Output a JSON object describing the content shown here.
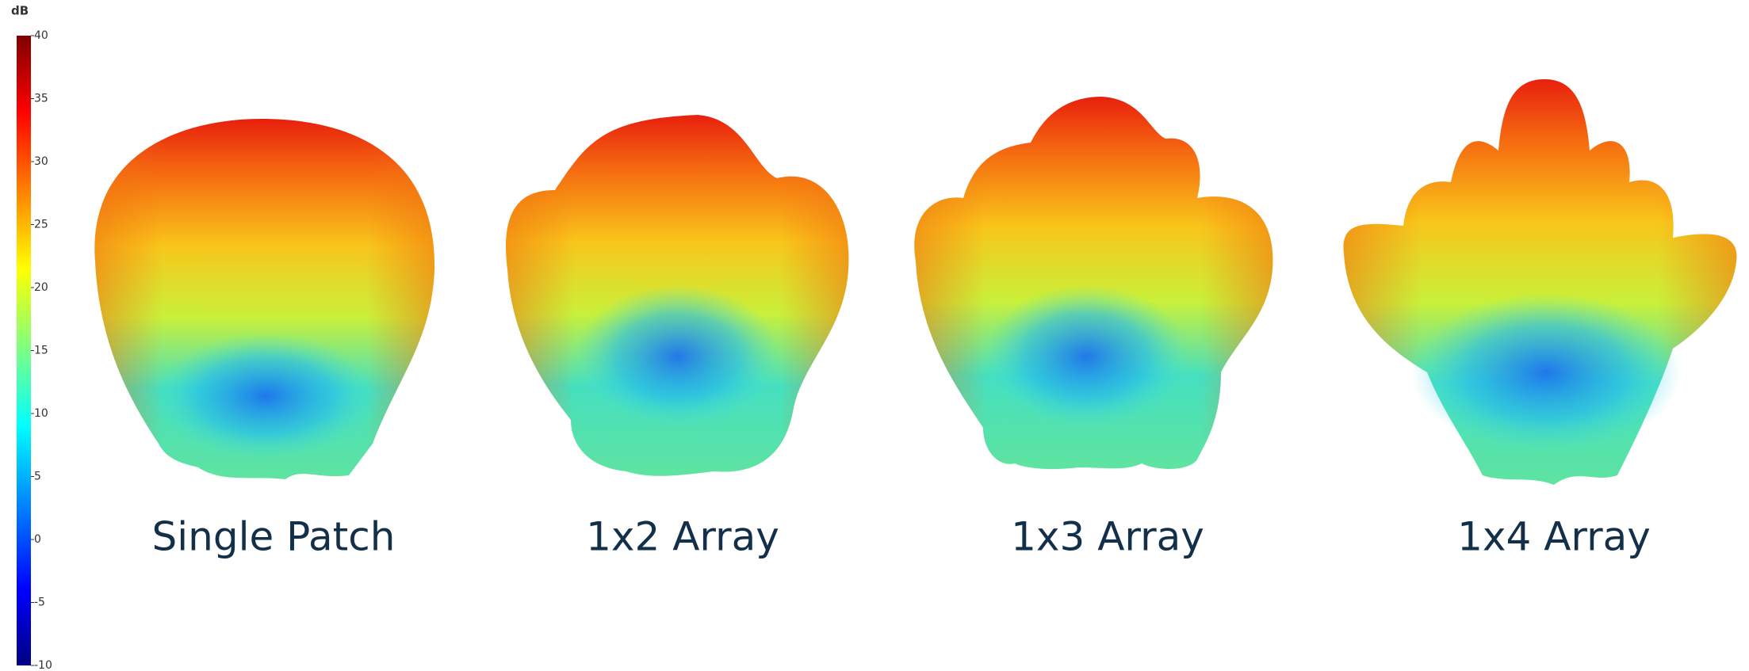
{
  "colorbar": {
    "label": "dB",
    "lim": [
      -10,
      40
    ],
    "ticks": [
      40,
      35,
      30,
      25,
      20,
      15,
      10,
      5,
      0,
      -5,
      -10
    ]
  },
  "panels": [
    {
      "label": "Single Patch"
    },
    {
      "label": "1x2 Array"
    },
    {
      "label": "1x3 Array"
    },
    {
      "label": "1x4 Array"
    }
  ]
}
